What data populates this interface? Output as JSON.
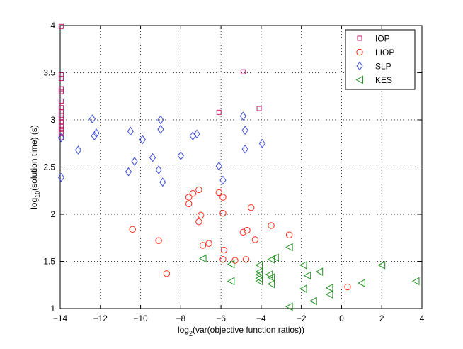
{
  "chart_data": {
    "type": "scatter",
    "title": "",
    "xlabel": {
      "base": "log",
      "sub": "2",
      "rest": "(var(objective function ratios))"
    },
    "ylabel": {
      "base": "log",
      "sub": "10",
      "rest": "(solution time) (s)"
    },
    "xlim": [
      -14,
      4
    ],
    "ylim": [
      1,
      4
    ],
    "xticks": [
      -14,
      -12,
      -10,
      -8,
      -6,
      -4,
      -2,
      0,
      2,
      4
    ],
    "yticks": [
      1,
      1.5,
      2,
      2.5,
      3,
      3.5,
      4
    ],
    "xtick_labels": [
      "−14",
      "−12",
      "−10",
      "−8",
      "−6",
      "−4",
      "−2",
      "0",
      "2",
      "4"
    ],
    "ytick_labels": [
      "1",
      "1.5",
      "2",
      "2.5",
      "3",
      "3.5",
      "4"
    ],
    "grid": true,
    "legend_position": "top-right",
    "series": [
      {
        "name": "IOP",
        "marker": "square",
        "color": "#bf1f6f",
        "points": [
          [
            -13.95,
            3.99
          ],
          [
            -13.95,
            3.48
          ],
          [
            -13.95,
            3.44
          ],
          [
            -13.95,
            3.33
          ],
          [
            -13.95,
            3.3
          ],
          [
            -13.95,
            3.2
          ],
          [
            -13.95,
            3.13
          ],
          [
            -13.95,
            3.09
          ],
          [
            -13.95,
            3.05
          ],
          [
            -13.95,
            3.02
          ],
          [
            -13.95,
            2.98
          ],
          [
            -13.95,
            2.93
          ],
          [
            -13.95,
            2.9
          ],
          [
            -13.95,
            2.87
          ],
          [
            -13.95,
            2.81
          ],
          [
            -6.1,
            3.08
          ],
          [
            -4.9,
            3.51
          ],
          [
            -4.1,
            3.12
          ]
        ]
      },
      {
        "name": "LIOP",
        "marker": "circle",
        "color": "#ff2a1a",
        "points": [
          [
            -10.4,
            1.84
          ],
          [
            -9.1,
            1.72
          ],
          [
            -8.7,
            1.37
          ],
          [
            -7.6,
            2.18
          ],
          [
            -7.6,
            2.11
          ],
          [
            -7.4,
            2.22
          ],
          [
            -7.1,
            2.26
          ],
          [
            -7.1,
            1.92
          ],
          [
            -7.0,
            1.99
          ],
          [
            -6.9,
            1.67
          ],
          [
            -6.6,
            1.69
          ],
          [
            -6.1,
            2.23
          ],
          [
            -5.9,
            2.18
          ],
          [
            -5.9,
            2.01
          ],
          [
            -5.85,
            1.62
          ],
          [
            -5.9,
            1.52
          ],
          [
            -5.3,
            1.51
          ],
          [
            -4.9,
            1.81
          ],
          [
            -4.7,
            1.83
          ],
          [
            -4.75,
            1.52
          ],
          [
            -4.5,
            2.07
          ],
          [
            -4.3,
            1.73
          ],
          [
            -3.5,
            1.88
          ],
          [
            -2.6,
            1.78
          ],
          [
            0.3,
            1.23
          ]
        ]
      },
      {
        "name": "SLP",
        "marker": "diamond",
        "color": "#3b4bdb",
        "points": [
          [
            -13.95,
            2.81
          ],
          [
            -13.95,
            2.39
          ],
          [
            -13.1,
            2.68
          ],
          [
            -12.4,
            3.01
          ],
          [
            -12.3,
            2.83
          ],
          [
            -12.2,
            2.86
          ],
          [
            -10.5,
            2.88
          ],
          [
            -10.6,
            2.45
          ],
          [
            -10.3,
            2.56
          ],
          [
            -9.9,
            2.79
          ],
          [
            -9.0,
            3.0
          ],
          [
            -9.0,
            2.9
          ],
          [
            -9.1,
            2.47
          ],
          [
            -8.9,
            2.34
          ],
          [
            -9.4,
            2.6
          ],
          [
            -8.0,
            2.62
          ],
          [
            -7.4,
            2.83
          ],
          [
            -7.2,
            2.85
          ],
          [
            -6.1,
            2.51
          ],
          [
            -5.9,
            2.36
          ],
          [
            -4.9,
            3.04
          ],
          [
            -4.8,
            2.89
          ],
          [
            -4.8,
            2.69
          ],
          [
            -3.95,
            2.75
          ]
        ]
      },
      {
        "name": "KES",
        "marker": "triangle-left",
        "color": "#249224",
        "points": [
          [
            -6.9,
            1.53
          ],
          [
            -5.5,
            1.47
          ],
          [
            -5.5,
            1.29
          ],
          [
            -4.1,
            1.46
          ],
          [
            -4.1,
            1.39
          ],
          [
            -4.1,
            1.36
          ],
          [
            -4.1,
            1.32
          ],
          [
            -4.1,
            1.29
          ],
          [
            -3.6,
            1.36
          ],
          [
            -3.5,
            1.52
          ],
          [
            -3.3,
            1.54
          ],
          [
            -3.5,
            1.33
          ],
          [
            -3.5,
            1.26
          ],
          [
            -2.6,
            1.65
          ],
          [
            -2.6,
            1.02
          ],
          [
            -1.9,
            1.46
          ],
          [
            -1.9,
            1.21
          ],
          [
            -1.7,
            1.35
          ],
          [
            -1.4,
            1.08
          ],
          [
            -1.1,
            1.39
          ],
          [
            -0.6,
            1.22
          ],
          [
            -0.6,
            1.15
          ],
          [
            1.0,
            1.27
          ],
          [
            2.0,
            1.46
          ],
          [
            3.7,
            1.29
          ]
        ]
      }
    ]
  }
}
